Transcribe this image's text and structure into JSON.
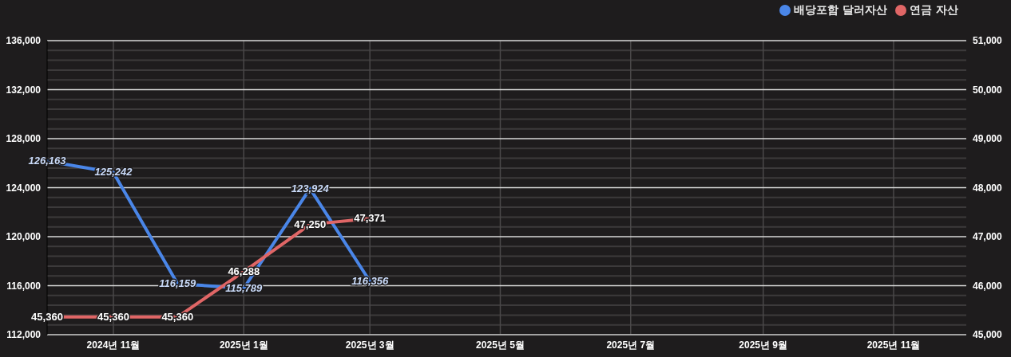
{
  "chart_data": {
    "type": "line",
    "x": [
      "2024-10",
      "2024-11",
      "2024-12",
      "2025-01",
      "2025-02",
      "2025-03"
    ],
    "xlim": [
      "2024-10-01",
      "2025-12-05"
    ],
    "xticks": [
      {
        "value": "2024-11",
        "label": "2024년 11월"
      },
      {
        "value": "2025-01",
        "label": "2025년 1월"
      },
      {
        "value": "2025-03",
        "label": "2025년 3월"
      },
      {
        "value": "2025-05",
        "label": "2025년 5월"
      },
      {
        "value": "2025-07",
        "label": "2025년 7월"
      },
      {
        "value": "2025-09",
        "label": "2025년 9월"
      },
      {
        "value": "2025-11",
        "label": "2025년 11월"
      }
    ],
    "ylim": [
      112000,
      136000
    ],
    "yticks": [
      {
        "value": 112000,
        "label": "112,000"
      },
      {
        "value": 112800,
        "label": null
      },
      {
        "value": 113600,
        "label": null
      },
      {
        "value": 114400,
        "label": null
      },
      {
        "value": 115200,
        "label": null
      },
      {
        "value": 116000,
        "label": "116,000"
      },
      {
        "value": 116800,
        "label": null
      },
      {
        "value": 117600,
        "label": null
      },
      {
        "value": 118400,
        "label": null
      },
      {
        "value": 119200,
        "label": null
      },
      {
        "value": 120000,
        "label": "120,000"
      },
      {
        "value": 120800,
        "label": null
      },
      {
        "value": 121600,
        "label": null
      },
      {
        "value": 122400,
        "label": null
      },
      {
        "value": 123200,
        "label": null
      },
      {
        "value": 124000,
        "label": "124,000"
      },
      {
        "value": 124800,
        "label": null
      },
      {
        "value": 125600,
        "label": null
      },
      {
        "value": 126400,
        "label": null
      },
      {
        "value": 127200,
        "label": null
      },
      {
        "value": 128000,
        "label": "128,000"
      },
      {
        "value": 128800,
        "label": null
      },
      {
        "value": 129600,
        "label": null
      },
      {
        "value": 130400,
        "label": null
      },
      {
        "value": 131200,
        "label": null
      },
      {
        "value": 132000,
        "label": "132,000"
      },
      {
        "value": 132800,
        "label": null
      },
      {
        "value": 133600,
        "label": null
      },
      {
        "value": 134400,
        "label": null
      },
      {
        "value": 135200,
        "label": null
      },
      {
        "value": 136000,
        "label": "136,000"
      }
    ],
    "y2lim": [
      45000,
      51000
    ],
    "y2ticks": [
      {
        "value": 45000,
        "label": "45,000"
      },
      {
        "value": 46000,
        "label": "46,000"
      },
      {
        "value": 47000,
        "label": "47,000"
      },
      {
        "value": 48000,
        "label": "48,000"
      },
      {
        "value": 49000,
        "label": "49,000"
      },
      {
        "value": 50000,
        "label": "50,000"
      },
      {
        "value": 51000,
        "label": "51,000"
      }
    ],
    "series": [
      {
        "name": "배당포함 달러자산",
        "color": "#4a86e8",
        "values": [
          126163,
          125242,
          116159,
          115789,
          123924,
          116356
        ],
        "value_labels": [
          "126,163",
          "125,242",
          "116,159",
          "115,789",
          "123,924",
          "116,356"
        ]
      },
      {
        "name": "연금 자산",
        "color": "#e06666",
        "axis": "y2",
        "values": [
          45360,
          45360,
          45360,
          46288,
          47250,
          47371
        ],
        "value_labels": [
          "45,360",
          "45,360",
          "45,360",
          "46,288",
          "47,250",
          "47,371"
        ]
      }
    ],
    "grid": true,
    "legend": "top right",
    "marker": "none",
    "line_style": "solid"
  }
}
